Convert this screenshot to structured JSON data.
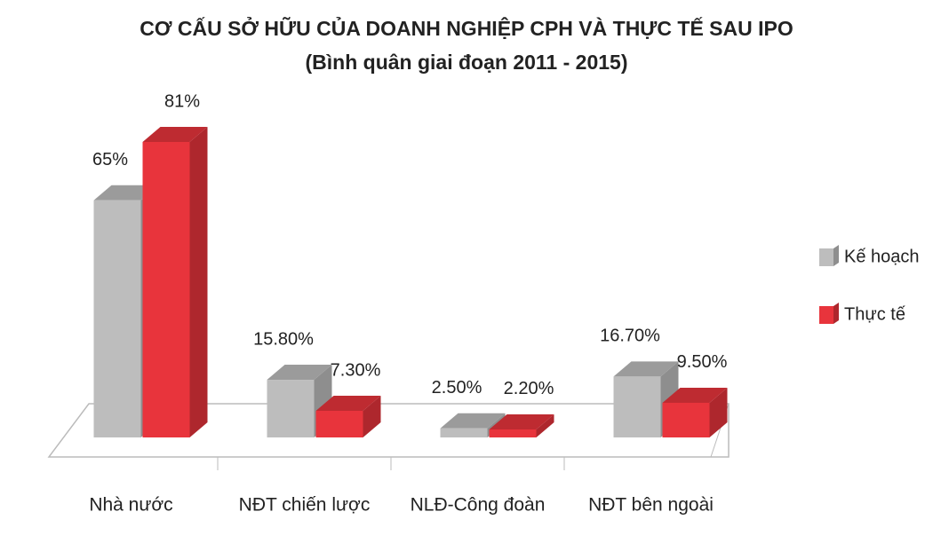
{
  "chart_data": {
    "type": "bar3d",
    "title": "CƠ CẤU SỞ HỮU CỦA DOANH NGHIỆP CPH VÀ THỰC TẾ SAU IPO",
    "subtitle": "(Bình quân giai đoạn 2011 - 2015)",
    "categories": [
      "Nhà nước",
      "NĐT chiến lược",
      "NLĐ-Công đoàn",
      "NĐT bên ngoài"
    ],
    "series": [
      {
        "name": "Kế hoạch",
        "color": "#bdbdbd",
        "values": [
          65,
          15.8,
          2.5,
          16.7
        ],
        "value_labels": [
          "65%",
          "15.80%",
          "2.50%",
          "16.70%"
        ]
      },
      {
        "name": "Thực tế",
        "color": "#e8343c",
        "values": [
          81,
          7.3,
          2.2,
          9.5
        ],
        "value_labels": [
          "81%",
          "7.30%",
          "2.20%",
          "9.50%"
        ]
      }
    ],
    "legend": "right"
  }
}
